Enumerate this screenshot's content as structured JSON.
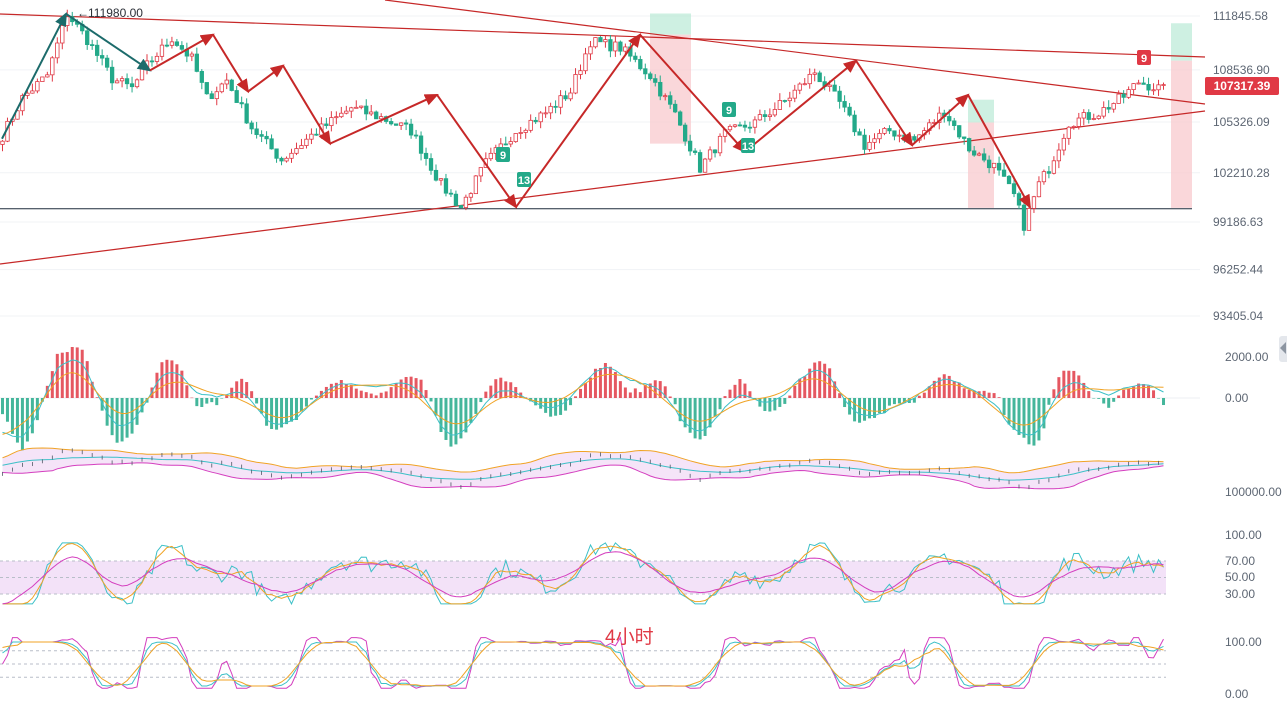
{
  "chart_data": [
    {
      "type": "candlestick",
      "title": "",
      "annotation": "4小时",
      "y_axis_ticks": [
        "111845.58",
        "108536.90",
        "105326.09",
        "102210.28",
        "99186.63",
        "96252.44",
        "93405.04"
      ],
      "ylim": [
        92500,
        113000
      ],
      "current_price": "107317.39",
      "peak_label": "111980.00",
      "horizontal_level": 100000,
      "td_sequential_marks": [
        "9",
        "13",
        "9",
        "13",
        "9"
      ],
      "close_path": [
        {
          "i": 0,
          "v": 104500
        },
        {
          "i": 4,
          "v": 106800
        },
        {
          "i": 9,
          "v": 108200
        },
        {
          "i": 13,
          "v": 111980
        },
        {
          "i": 17,
          "v": 110400
        },
        {
          "i": 22,
          "v": 108000
        },
        {
          "i": 26,
          "v": 107400
        },
        {
          "i": 29,
          "v": 108800
        },
        {
          "i": 34,
          "v": 110500
        },
        {
          "i": 38,
          "v": 109200
        },
        {
          "i": 41,
          "v": 106800
        },
        {
          "i": 45,
          "v": 107900
        },
        {
          "i": 50,
          "v": 105000
        },
        {
          "i": 56,
          "v": 103000
        },
        {
          "i": 62,
          "v": 104500
        },
        {
          "i": 70,
          "v": 106200
        },
        {
          "i": 76,
          "v": 105600
        },
        {
          "i": 82,
          "v": 104800
        },
        {
          "i": 88,
          "v": 101500
        },
        {
          "i": 92,
          "v": 100100
        },
        {
          "i": 97,
          "v": 102800
        },
        {
          "i": 103,
          "v": 104800
        },
        {
          "i": 109,
          "v": 105900
        },
        {
          "i": 114,
          "v": 107200
        },
        {
          "i": 118,
          "v": 110300
        },
        {
          "i": 124,
          "v": 109900
        },
        {
          "i": 130,
          "v": 108200
        },
        {
          "i": 135,
          "v": 105800
        },
        {
          "i": 140,
          "v": 102500
        },
        {
          "i": 145,
          "v": 104600
        },
        {
          "i": 151,
          "v": 105300
        },
        {
          "i": 157,
          "v": 106600
        },
        {
          "i": 163,
          "v": 108400
        },
        {
          "i": 168,
          "v": 106500
        },
        {
          "i": 173,
          "v": 103900
        },
        {
          "i": 178,
          "v": 104800
        },
        {
          "i": 183,
          "v": 104200
        },
        {
          "i": 189,
          "v": 106000
        },
        {
          "i": 194,
          "v": 103700
        },
        {
          "i": 199,
          "v": 102600
        },
        {
          "i": 203,
          "v": 100800
        },
        {
          "i": 205,
          "v": 99000
        },
        {
          "i": 208,
          "v": 101500
        },
        {
          "i": 210,
          "v": 102500
        },
        {
          "i": 214,
          "v": 105300
        },
        {
          "i": 220,
          "v": 105900
        },
        {
          "i": 225,
          "v": 106900
        },
        {
          "i": 228,
          "v": 107800
        },
        {
          "i": 233,
          "v": 107300
        }
      ],
      "zigzag_price": [
        111980,
        108500,
        110700,
        107200,
        108800,
        104000,
        107000,
        100100,
        110700,
        103500,
        109100,
        103900,
        107000,
        100100
      ],
      "zigzag_colors": [
        "#1c6b6b",
        "#c62828"
      ]
    },
    {
      "type": "line",
      "indicator": "MACD",
      "y_axis_ticks": [
        "2000.00",
        "0.00"
      ],
      "ylim": [
        -1500,
        2500
      ]
    },
    {
      "type": "line",
      "indicator": "BOLL",
      "y_axis_ticks": [
        "100000.00"
      ]
    },
    {
      "type": "line",
      "indicator": "RSI",
      "y_axis_ticks": [
        "100.00",
        "70.00",
        "50.00",
        "30.00"
      ],
      "ylim": [
        0,
        100
      ]
    },
    {
      "type": "line",
      "indicator": "KDJ",
      "y_axis_ticks": [
        "100.00",
        "0.00"
      ],
      "ylim": [
        0,
        100
      ]
    }
  ],
  "colors": {
    "up": "#e03945",
    "down": "#23a989",
    "trendline": "#c62828",
    "zigzag_teal": "#1c6b6b",
    "signal_yellow": "#f0a325",
    "signal_cyan": "#3cc0c7",
    "signal_magenta": "#d43fbf",
    "band_fill": "#f2ddf6"
  }
}
